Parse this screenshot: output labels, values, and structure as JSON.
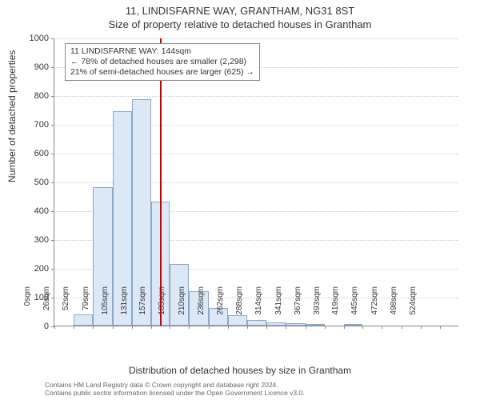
{
  "address": "11, LINDISFARNE WAY, GRANTHAM, NG31 8ST",
  "subtitle": "Size of property relative to detached houses in Grantham",
  "ylabel": "Number of detached properties",
  "xlabel": "Distribution of detached houses by size in Grantham",
  "annotation": {
    "line1": "11 LINDISFARNE WAY: 144sqm",
    "line2": "← 78% of detached houses are smaller (2,298)",
    "line3": "21% of semi-detached houses are larger (625) →"
  },
  "credit1": "Contains HM Land Registry data © Crown copyright and database right 2024.",
  "credit2": "Contains public sector information licensed under the Open Government Licence v3.0.",
  "chart": {
    "type": "histogram",
    "ylim": [
      0,
      1000
    ],
    "yticks": [
      0,
      100,
      200,
      300,
      400,
      500,
      600,
      700,
      800,
      900,
      1000
    ],
    "grid_color": "#cccccc",
    "bar_fill": "#dce8f6",
    "bar_border": "#8aa8cc",
    "refline_color": "#cc0000",
    "refline_x": 144,
    "background": "#ffffff",
    "bins": [
      {
        "label": "0sqm",
        "x": 0,
        "count": 0
      },
      {
        "label": "26sqm",
        "x": 26,
        "count": 40
      },
      {
        "label": "52sqm",
        "x": 52,
        "count": 480
      },
      {
        "label": "79sqm",
        "x": 79,
        "count": 745
      },
      {
        "label": "105sqm",
        "x": 105,
        "count": 785
      },
      {
        "label": "131sqm",
        "x": 131,
        "count": 430
      },
      {
        "label": "157sqm",
        "x": 157,
        "count": 215
      },
      {
        "label": "183sqm",
        "x": 183,
        "count": 120
      },
      {
        "label": "210sqm",
        "x": 210,
        "count": 60
      },
      {
        "label": "236sqm",
        "x": 236,
        "count": 35
      },
      {
        "label": "262sqm",
        "x": 262,
        "count": 20
      },
      {
        "label": "288sqm",
        "x": 288,
        "count": 12
      },
      {
        "label": "314sqm",
        "x": 314,
        "count": 8
      },
      {
        "label": "341sqm",
        "x": 341,
        "count": 5
      },
      {
        "label": "367sqm",
        "x": 367,
        "count": 0
      },
      {
        "label": "393sqm",
        "x": 393,
        "count": 3
      },
      {
        "label": "419sqm",
        "x": 419,
        "count": 0
      },
      {
        "label": "445sqm",
        "x": 445,
        "count": 0
      },
      {
        "label": "472sqm",
        "x": 472,
        "count": 0
      },
      {
        "label": "498sqm",
        "x": 498,
        "count": 0
      },
      {
        "label": "524sqm",
        "x": 524,
        "count": 0
      }
    ],
    "xlim": [
      0,
      550
    ]
  }
}
